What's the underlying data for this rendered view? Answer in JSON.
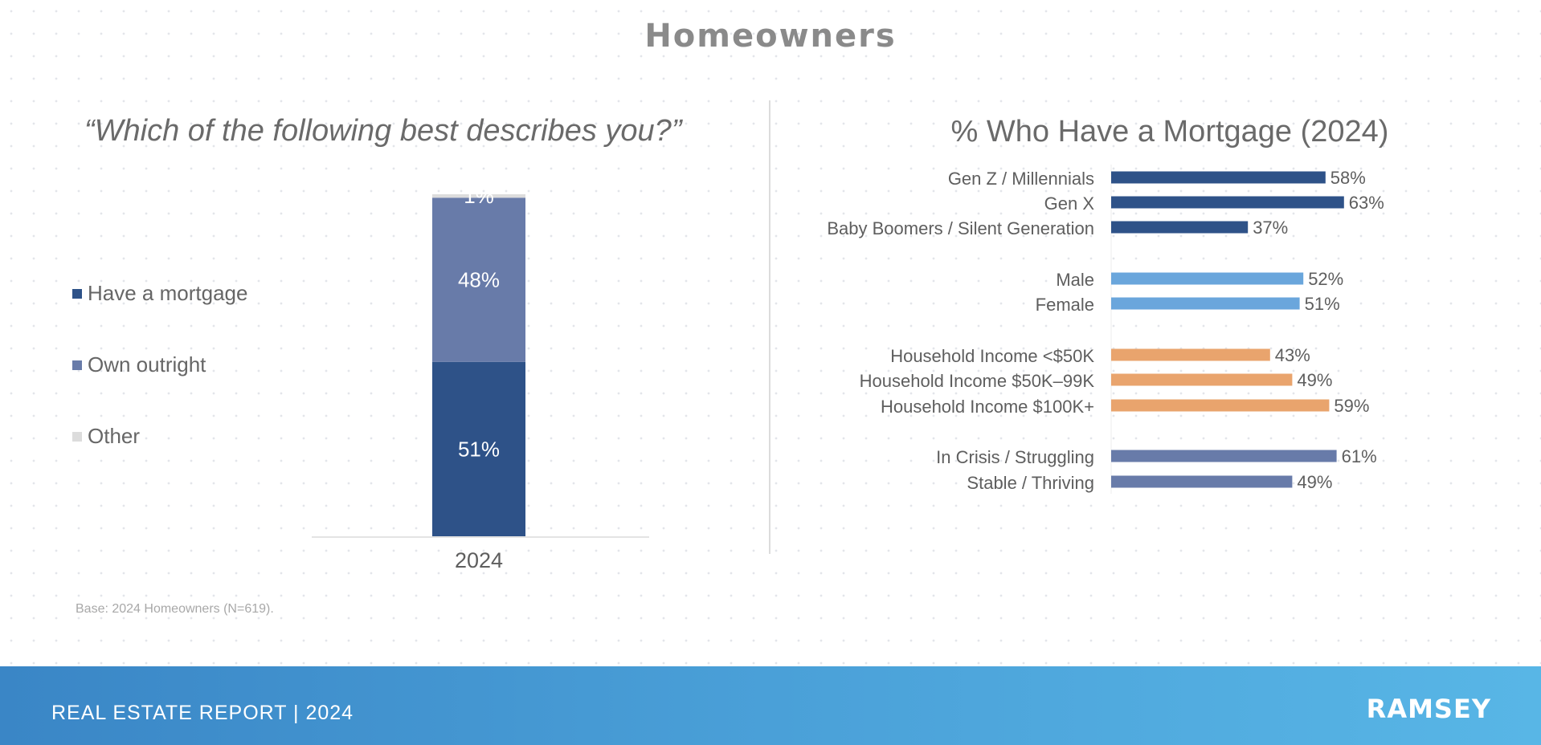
{
  "page": {
    "title": "Homeowners",
    "base_note": "Base: 2024 Homeowners (N=619).",
    "footer_label": "REAL ESTATE REPORT | 2024",
    "brand": "RAMSEY"
  },
  "chart_data": [
    {
      "type": "bar",
      "stacked": true,
      "title": "“Which of the following best describes you?”",
      "categories": [
        "2024"
      ],
      "series": [
        {
          "name": "Have a mortgage",
          "values": [
            51
          ],
          "labels": [
            "51%"
          ],
          "color": "#2e5288"
        },
        {
          "name": "Own outright",
          "values": [
            48
          ],
          "labels": [
            "48%"
          ],
          "color": "#687ba9"
        },
        {
          "name": "Other",
          "values": [
            1
          ],
          "labels": [
            "1%"
          ],
          "color": "#dcdcdc"
        }
      ],
      "ylim": [
        0,
        100
      ],
      "legend": "left",
      "grid": false
    },
    {
      "type": "bar",
      "orientation": "horizontal",
      "title": "% Who Have a Mortgage (2024)",
      "categories": [
        "Gen Z / Millennials",
        "Gen X",
        "Baby Boomers / Silent Generation",
        "Male",
        "Female",
        "Household Income <$50K",
        "Household Income $50K–99K",
        "Household Income $100K+",
        "In Crisis / Struggling",
        "Stable / Thriving"
      ],
      "values": [
        58,
        63,
        37,
        52,
        51,
        43,
        49,
        59,
        61,
        49
      ],
      "labels": [
        "58%",
        "63%",
        "37%",
        "52%",
        "51%",
        "43%",
        "49%",
        "59%",
        "61%",
        "49%"
      ],
      "colors": [
        "#2e5288",
        "#2e5288",
        "#2e5288",
        "#6aa6dc",
        "#6aa6dc",
        "#e9a46d",
        "#e9a46d",
        "#e9a46d",
        "#687ba9",
        "#687ba9"
      ],
      "xlim": [
        0,
        100
      ],
      "grid": false
    }
  ]
}
